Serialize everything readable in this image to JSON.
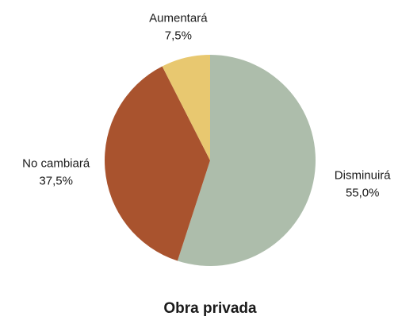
{
  "chart_data": {
    "type": "pie",
    "title": "Obra privada",
    "categories": [
      "Disminuirá",
      "No cambiará",
      "Aumentará"
    ],
    "values": [
      55.0,
      37.5,
      7.5
    ],
    "value_labels": [
      "55,0%",
      "37,5%",
      "7,5%"
    ],
    "colors": [
      "#adbdab",
      "#a9532e",
      "#e8c870"
    ]
  }
}
